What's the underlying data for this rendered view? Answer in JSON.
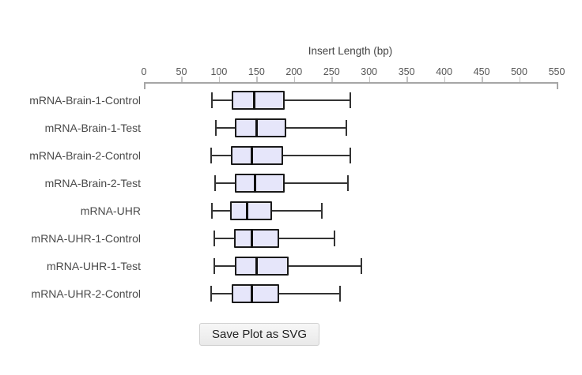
{
  "page": {
    "background": "#ffffff"
  },
  "button": {
    "label": "Save Plot as SVG"
  },
  "chart_data": {
    "type": "boxplot",
    "orientation": "horizontal",
    "title": "Insert Length (bp)",
    "axis": {
      "label": "Insert Length (bp)",
      "position": "top",
      "min": 0,
      "max": 550,
      "tick_interval": 50,
      "ticks": [
        0,
        50,
        100,
        150,
        200,
        250,
        300,
        350,
        400,
        450,
        500,
        550
      ]
    },
    "series": [
      {
        "label": "mRNA-Brain-1-Control",
        "min": 90,
        "q1": 117,
        "median": 147,
        "q3": 188,
        "max": 274
      },
      {
        "label": "mRNA-Brain-1-Test",
        "min": 95,
        "q1": 121,
        "median": 150,
        "q3": 190,
        "max": 269
      },
      {
        "label": "mRNA-Brain-2-Control",
        "min": 88,
        "q1": 116,
        "median": 144,
        "q3": 185,
        "max": 274
      },
      {
        "label": "mRNA-Brain-2-Test",
        "min": 94,
        "q1": 121,
        "median": 148,
        "q3": 188,
        "max": 271
      },
      {
        "label": "mRNA-UHR",
        "min": 90,
        "q1": 115,
        "median": 138,
        "q3": 171,
        "max": 236
      },
      {
        "label": "mRNA-UHR-1-Control",
        "min": 93,
        "q1": 120,
        "median": 144,
        "q3": 180,
        "max": 253
      },
      {
        "label": "mRNA-UHR-1-Test",
        "min": 93,
        "q1": 121,
        "median": 150,
        "q3": 193,
        "max": 289
      },
      {
        "label": "mRNA-UHR-2-Control",
        "min": 89,
        "q1": 117,
        "median": 144,
        "q3": 180,
        "max": 260
      }
    ],
    "colors": {
      "box_fill": "#e6e6fa",
      "box_border": "#1a1a1a",
      "median": "#111111",
      "whisker": "#333333",
      "axis_line": "#a6a6a6",
      "tick": "#c2c2c2",
      "tick_label": "#555555",
      "title": "#444444",
      "row_label": "#4a4a4a"
    },
    "legend": "none",
    "grid": false
  }
}
